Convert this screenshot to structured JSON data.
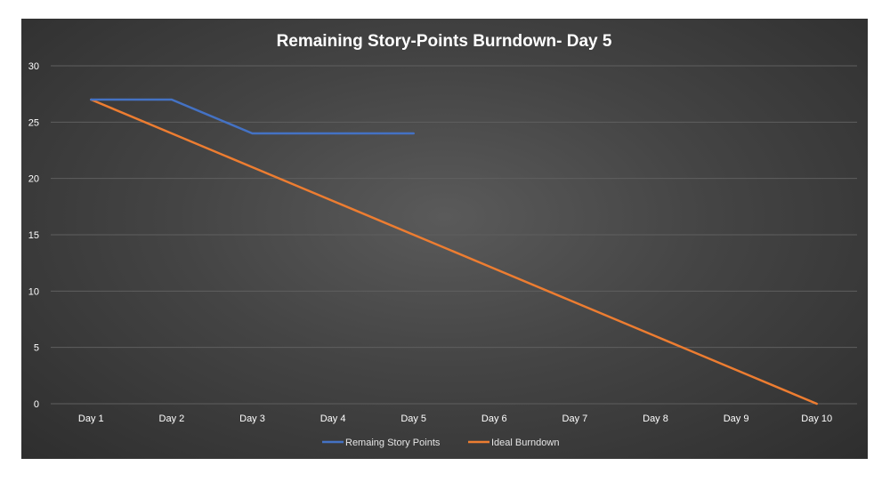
{
  "chart_data": {
    "type": "line",
    "title": "Remaining Story-Points Burndown- Day 5",
    "categories": [
      "Day 1",
      "Day 2",
      "Day 3",
      "Day 4",
      "Day 5",
      "Day 6",
      "Day 7",
      "Day 8",
      "Day 9",
      "Day 10"
    ],
    "series": [
      {
        "name": "Remaing Story Points",
        "color": "#4472c4",
        "values": [
          27,
          27,
          24,
          24,
          24,
          null,
          null,
          null,
          null,
          null
        ]
      },
      {
        "name": "Ideal Burndown",
        "color": "#ed7d31",
        "values": [
          27,
          24,
          21,
          18,
          15,
          12,
          9,
          6,
          3,
          0
        ]
      }
    ],
    "ylim": [
      0,
      30
    ],
    "yticks": [
      0,
      5,
      10,
      15,
      20,
      25,
      30
    ],
    "grid": true,
    "legend": "bottom",
    "colors": {
      "background": "#444444",
      "gridline": "#5f5f5f",
      "text": "#ffffff"
    }
  }
}
